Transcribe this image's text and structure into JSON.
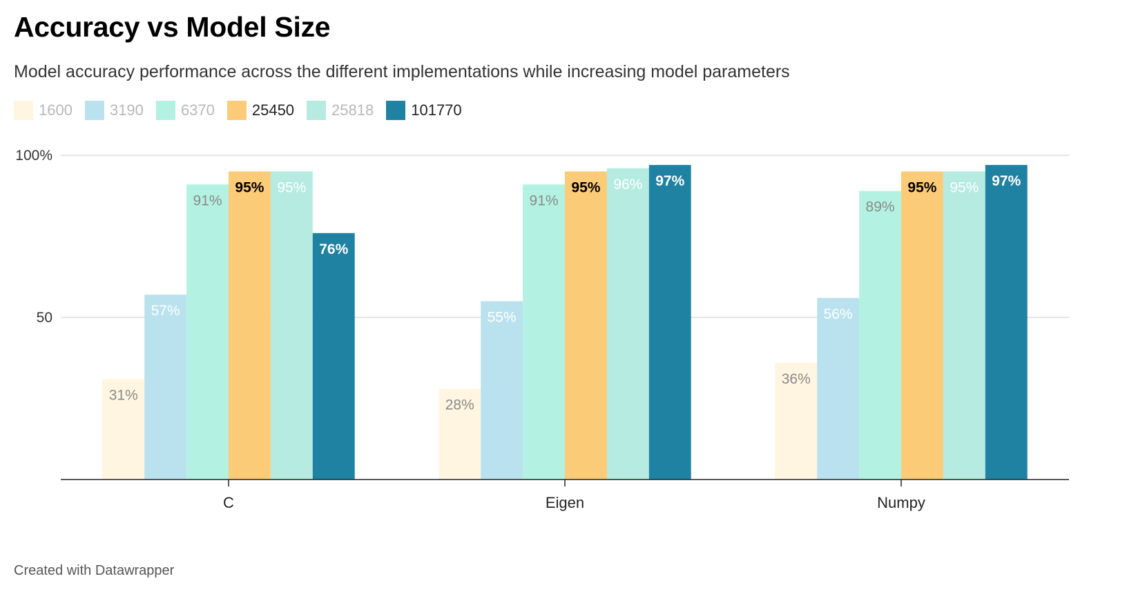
{
  "header": {
    "title": "Accuracy vs Model Size",
    "subtitle": "Model accuracy performance across the different implementations while increasing model parameters"
  },
  "footer": {
    "credit": "Created with Datawrapper"
  },
  "chart_data": {
    "type": "bar",
    "categories": [
      "C",
      "Eigen",
      "Numpy"
    ],
    "series": [
      {
        "name": "1600",
        "values": [
          31,
          28,
          36
        ],
        "labels": [
          "31%",
          "28%",
          "36%"
        ],
        "color": "#fff5e1",
        "legend_text_color": "#b8b8b8",
        "label_color": "#8a8a8a",
        "label_bold": false
      },
      {
        "name": "3190",
        "values": [
          57,
          55,
          56
        ],
        "labels": [
          "57%",
          "55%",
          "56%"
        ],
        "color": "#b9e2ee",
        "legend_text_color": "#b8b8b8",
        "label_color": "#ffffff",
        "label_bold": false
      },
      {
        "name": "6370",
        "values": [
          91,
          91,
          89
        ],
        "labels": [
          "91%",
          "91%",
          "89%"
        ],
        "color": "#b3f2e2",
        "legend_text_color": "#b8b8b8",
        "label_color": "#8a8a8a",
        "label_bold": false
      },
      {
        "name": "25450",
        "values": [
          95,
          95,
          95
        ],
        "labels": [
          "95%",
          "95%",
          "95%"
        ],
        "color": "#fccb78",
        "legend_text_color": "#222222",
        "label_color": "#000000",
        "label_bold": true
      },
      {
        "name": "25818",
        "values": [
          95,
          96,
          95
        ],
        "labels": [
          "95%",
          "96%",
          "95%"
        ],
        "color": "#b5ebe1",
        "legend_text_color": "#b8b8b8",
        "label_color": "#ffffff",
        "label_bold": false
      },
      {
        "name": "101770",
        "values": [
          76,
          97,
          97
        ],
        "labels": [
          "76%",
          "97%",
          "97%"
        ],
        "color": "#1f82a2",
        "legend_text_color": "#222222",
        "label_color": "#ffffff",
        "label_bold": true
      }
    ],
    "y_ticks": [
      {
        "value": 100,
        "label": "100%"
      },
      {
        "value": 50,
        "label": "50"
      }
    ],
    "ylim": [
      0,
      100
    ],
    "grid": true,
    "legend_position": "top-left",
    "xlabel": "",
    "ylabel": ""
  }
}
